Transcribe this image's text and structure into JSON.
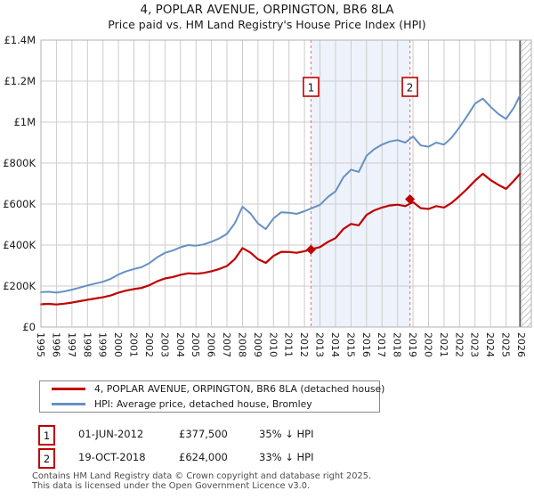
{
  "header": {
    "title": "4, POPLAR AVENUE, ORPINGTON, BR6 8LA",
    "subtitle": "Price paid vs. HM Land Registry's House Price Index (HPI)"
  },
  "chart_data": {
    "type": "line",
    "unit": "GBP_thousands",
    "xlim": [
      1995,
      2026.6
    ],
    "ylim": [
      0,
      1400
    ],
    "grid": true,
    "y_ticks": [
      0,
      200,
      400,
      600,
      800,
      1000,
      1200,
      1400
    ],
    "y_tick_labels": [
      "£0",
      "£200K",
      "£400K",
      "£600K",
      "£800K",
      "£1M",
      "£1.2M",
      "£1.4M"
    ],
    "x_tick_labels": [
      "1995",
      "1996",
      "1997",
      "1998",
      "1999",
      "2000",
      "2001",
      "2002",
      "2003",
      "2004",
      "2005",
      "2006",
      "2007",
      "2008",
      "2009",
      "2010",
      "2011",
      "2012",
      "2013",
      "2014",
      "2015",
      "2016",
      "2017",
      "2018",
      "2019",
      "2020",
      "2021",
      "2022",
      "2023",
      "2024",
      "2025",
      "2026"
    ],
    "x": [
      1995,
      1995.5,
      1996,
      1996.5,
      1997,
      1997.5,
      1998,
      1998.5,
      1999,
      1999.5,
      2000,
      2000.5,
      2001,
      2001.5,
      2002,
      2002.5,
      2003,
      2003.5,
      2004,
      2004.5,
      2005,
      2005.5,
      2006,
      2006.5,
      2007,
      2007.5,
      2008,
      2008.5,
      2009,
      2009.5,
      2010,
      2010.5,
      2011,
      2011.5,
      2012,
      2012.5,
      2013,
      2013.5,
      2014,
      2014.5,
      2015,
      2015.5,
      2016,
      2016.5,
      2017,
      2017.5,
      2018,
      2018.5,
      2019,
      2019.5,
      2020,
      2020.5,
      2021,
      2021.5,
      2022,
      2022.5,
      2023,
      2023.5,
      2024,
      2024.5,
      2025,
      2025.5,
      2025.9
    ],
    "series": [
      {
        "name": "4, POPLAR AVENUE, ORPINGTON, BR6 8LA (detached house)",
        "color": "#c00000",
        "width": 2.2,
        "values": [
          111,
          113,
          110,
          114,
          119,
          126,
          133,
          139,
          145,
          154,
          168,
          178,
          185,
          191,
          204,
          223,
          237,
          244,
          255,
          262,
          260,
          264,
          272,
          283,
          298,
          331,
          385,
          364,
          331,
          313,
          347,
          367,
          366,
          362,
          370,
          381,
          390,
          415,
          434,
          478,
          503,
          496,
          547,
          569,
          583,
          593,
          597,
          590,
          609,
          580,
          576,
          590,
          583,
          606,
          639,
          675,
          714,
          748,
          717,
          694,
          674,
          713,
          748
        ]
      },
      {
        "name": "HPI: Average price, detached house, Bromley",
        "color": "#6690c4",
        "width": 2,
        "values": [
          170,
          172,
          168,
          174,
          182,
          192,
          203,
          212,
          221,
          235,
          256,
          272,
          283,
          292,
          312,
          340,
          362,
          373,
          389,
          400,
          397,
          403,
          416,
          432,
          455,
          505,
          587,
          555,
          505,
          478,
          530,
          560,
          558,
          552,
          565,
          581,
          596,
          634,
          662,
          730,
          768,
          757,
          835,
          868,
          890,
          905,
          912,
          900,
          930,
          886,
          880,
          900,
          890,
          925,
          975,
          1030,
          1090,
          1115,
          1075,
          1040,
          1015,
          1070,
          1130
        ]
      }
    ],
    "sale_markers": [
      {
        "label": "1",
        "x": 2012.42,
        "value": 377.5
      },
      {
        "label": "2",
        "x": 2018.8,
        "value": 624
      }
    ],
    "shaded_region": [
      2012.42,
      2018.8
    ],
    "future_hatch_start": 2025.9,
    "colors": {
      "grid": "#cccccc",
      "border": "#b0b0b0",
      "dashed_marker": "#e88080",
      "shade": "#edf2fb",
      "hatch": "#c4c4c4",
      "hatch_edge": "#555555",
      "tick_text": "#1a1a1a"
    }
  },
  "legend": {
    "items": [
      {
        "label": "4, POPLAR AVENUE, ORPINGTON, BR6 8LA (detached house)"
      },
      {
        "label": "HPI: Average price, detached house, Bromley"
      }
    ]
  },
  "sales": [
    {
      "badge": "1",
      "date": "01-JUN-2012",
      "price": "£377,500",
      "vs_hpi": "35% ↓ HPI"
    },
    {
      "badge": "2",
      "date": "19-OCT-2018",
      "price": "£624,000",
      "vs_hpi": "33% ↓ HPI"
    }
  ],
  "footer": {
    "line1": "Contains HM Land Registry data © Crown copyright and database right 2025.",
    "line2": "This data is licensed under the Open Government Licence v3.0."
  }
}
